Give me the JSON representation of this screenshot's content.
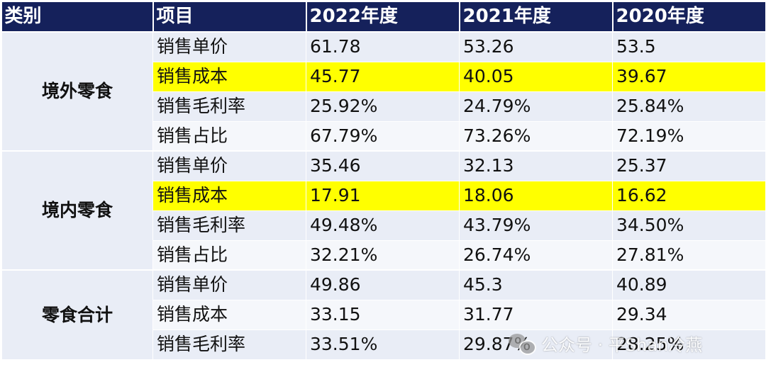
{
  "table": {
    "headers": [
      "类别",
      "项目",
      "2022年度",
      "2021年度",
      "2020年度"
    ],
    "groups": [
      {
        "category": "境外零食",
        "rows": [
          {
            "item": "销售单价",
            "v2022": "61.78",
            "v2021": "53.26",
            "v2020": "53.5",
            "highlight": false
          },
          {
            "item": "销售成本",
            "v2022": "45.77",
            "v2021": "40.05",
            "v2020": "39.67",
            "highlight": true
          },
          {
            "item": "销售毛利率",
            "v2022": "25.92%",
            "v2021": "24.79%",
            "v2020": "25.84%",
            "highlight": false
          },
          {
            "item": "销售占比",
            "v2022": "67.79%",
            "v2021": "73.26%",
            "v2020": "72.19%",
            "highlight": false
          }
        ]
      },
      {
        "category": "境内零食",
        "rows": [
          {
            "item": "销售单价",
            "v2022": "35.46",
            "v2021": "32.13",
            "v2020": "25.37",
            "highlight": false
          },
          {
            "item": "销售成本",
            "v2022": "17.91",
            "v2021": "18.06",
            "v2020": "16.62",
            "highlight": true
          },
          {
            "item": "销售毛利率",
            "v2022": "49.48%",
            "v2021": "43.79%",
            "v2020": "34.50%",
            "highlight": false
          },
          {
            "item": "销售占比",
            "v2022": "32.21%",
            "v2021": "26.74%",
            "v2020": "27.81%",
            "highlight": false
          }
        ]
      },
      {
        "category": "零食合计",
        "rows": [
          {
            "item": "销售单价",
            "v2022": "49.86",
            "v2021": "45.3",
            "v2020": "40.89",
            "highlight": false
          },
          {
            "item": "销售成本",
            "v2022": "33.15",
            "v2021": "31.77",
            "v2020": "29.34",
            "highlight": false
          },
          {
            "item": "销售毛利率",
            "v2022": "33.51%",
            "v2021": "29.87%",
            "v2020": "28.25%",
            "highlight": false
          }
        ]
      }
    ]
  },
  "watermark": {
    "text": "公众号 · 平Shan冷燕",
    "icon": "wechat-icon"
  },
  "colors": {
    "header_bg": "#15215b",
    "highlight": "#ffff00",
    "row_bg": "#e9edf6"
  }
}
